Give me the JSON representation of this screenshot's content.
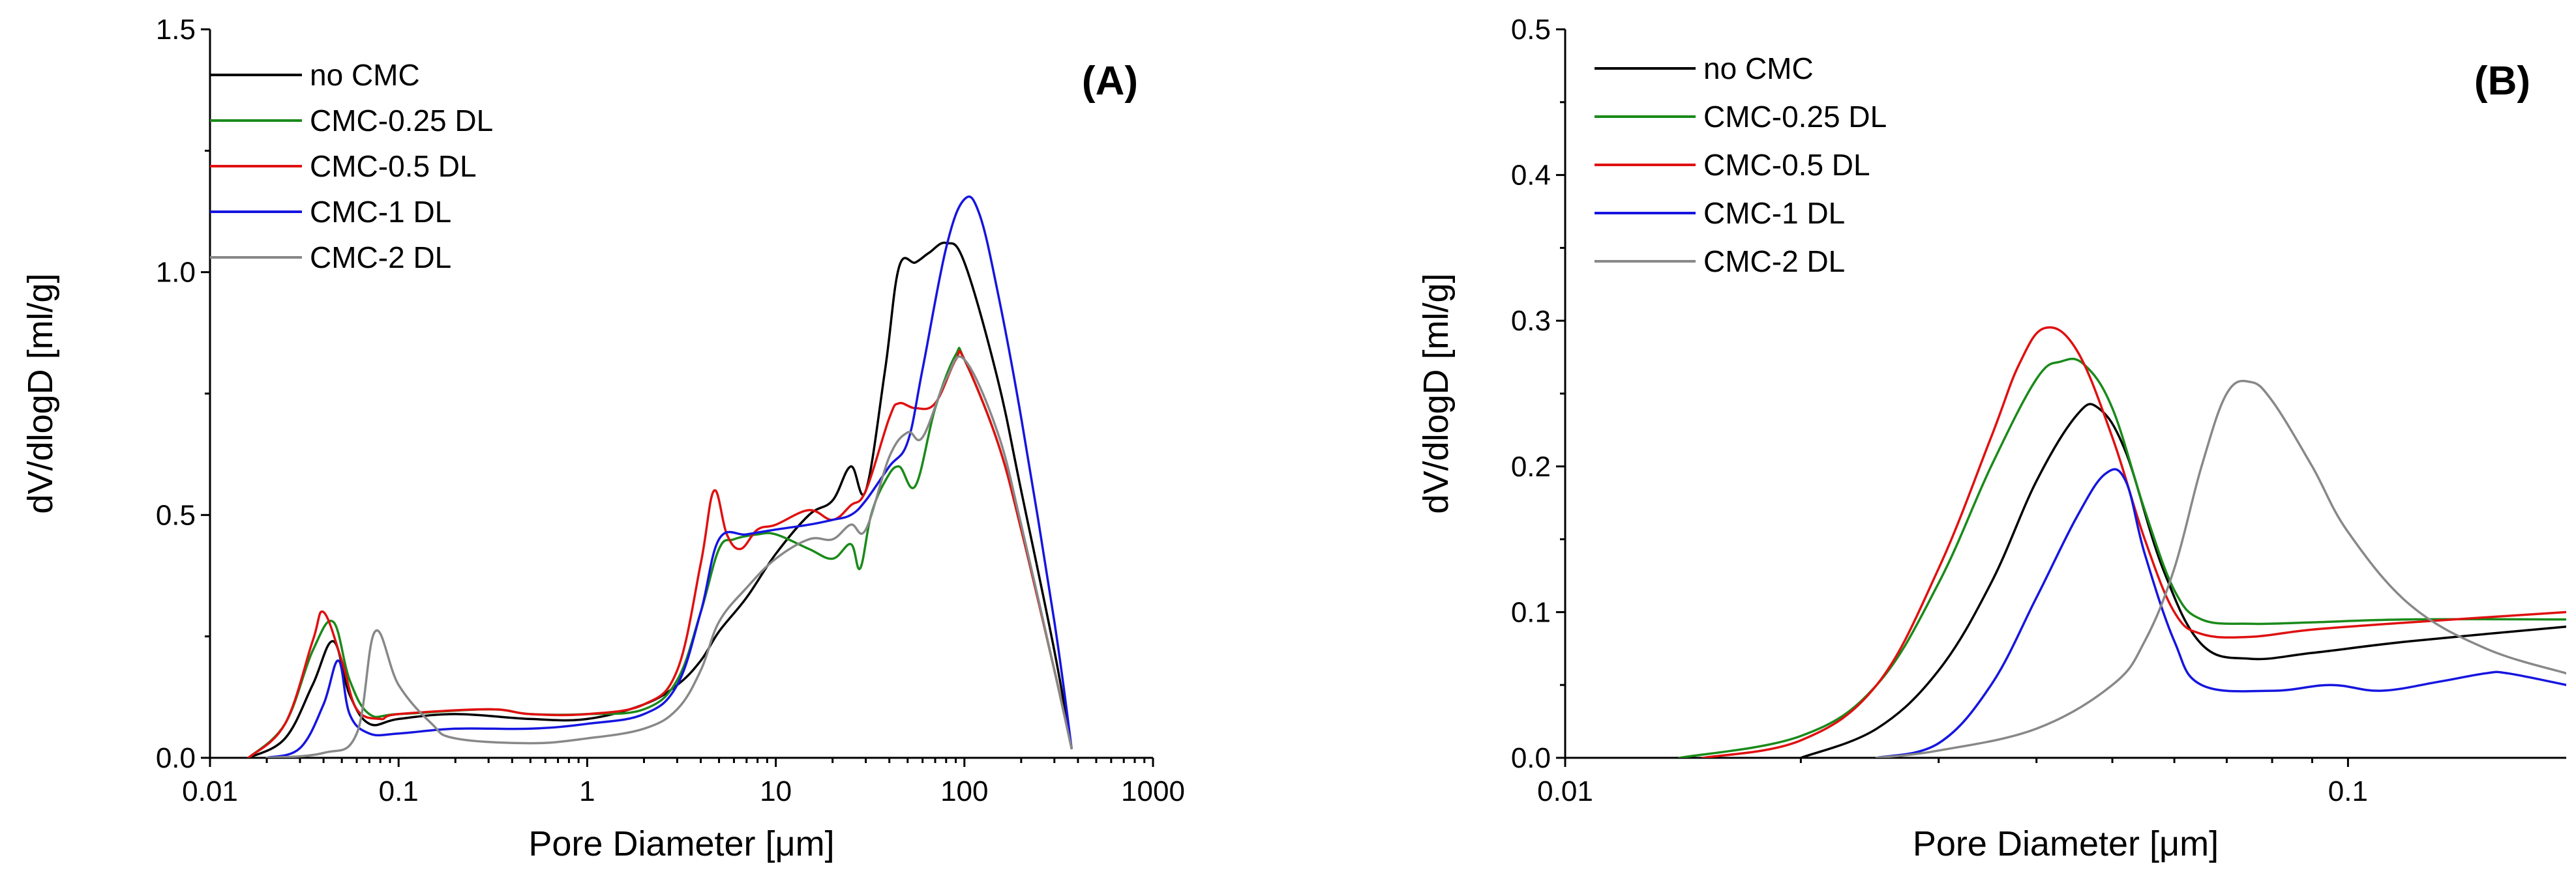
{
  "chart_data": [
    {
      "type": "line",
      "panel_label": "(A)",
      "xlabel": "Pore Diameter [μm]",
      "ylabel": "dV/dlogD [ml/g]",
      "xscale": "log",
      "xlim": [
        0.01,
        1000
      ],
      "ylim": [
        0.0,
        1.5
      ],
      "xticks": [
        0.01,
        0.1,
        1,
        10,
        100,
        1000
      ],
      "xtick_labels": [
        "0.01",
        "0.1",
        "1",
        "10",
        "100",
        "1000"
      ],
      "yticks": [
        0.0,
        0.5,
        1.0,
        1.5
      ],
      "ytick_labels": [
        "0.0",
        "0.5",
        "1.0",
        "1.5"
      ],
      "grid": false,
      "legend_position": "top-left",
      "series": [
        {
          "name": "no CMC",
          "color": "#000000",
          "x": [
            0.016,
            0.025,
            0.035,
            0.045,
            0.055,
            0.07,
            0.1,
            0.2,
            0.5,
            1,
            2,
            3,
            4,
            5,
            7,
            10,
            15,
            20,
            25,
            30,
            38,
            45,
            55,
            65,
            80,
            100,
            150,
            200,
            300,
            370
          ],
          "y": [
            0.0,
            0.04,
            0.15,
            0.24,
            0.13,
            0.07,
            0.08,
            0.09,
            0.08,
            0.08,
            0.11,
            0.15,
            0.2,
            0.26,
            0.33,
            0.42,
            0.5,
            0.53,
            0.6,
            0.55,
            0.8,
            1.01,
            1.02,
            1.04,
            1.06,
            1.02,
            0.78,
            0.55,
            0.22,
            0.02
          ]
        },
        {
          "name": "CMC-0.25 DL",
          "color": "#1a8a1a",
          "x": [
            0.016,
            0.025,
            0.035,
            0.045,
            0.055,
            0.07,
            0.1,
            0.3,
            0.5,
            1,
            2,
            3,
            4,
            5,
            6,
            8,
            10,
            15,
            20,
            25,
            28,
            32,
            38,
            45,
            55,
            70,
            90,
            100,
            150,
            200,
            300,
            370
          ],
          "y": [
            0.0,
            0.07,
            0.22,
            0.28,
            0.16,
            0.09,
            0.09,
            0.1,
            0.09,
            0.09,
            0.1,
            0.16,
            0.3,
            0.43,
            0.45,
            0.46,
            0.46,
            0.43,
            0.41,
            0.44,
            0.39,
            0.5,
            0.57,
            0.6,
            0.56,
            0.72,
            0.83,
            0.82,
            0.65,
            0.47,
            0.18,
            0.02
          ]
        },
        {
          "name": "CMC-0.5 DL",
          "color": "#e01010",
          "x": [
            0.016,
            0.025,
            0.035,
            0.04,
            0.05,
            0.06,
            0.08,
            0.1,
            0.3,
            0.5,
            1,
            2,
            3,
            4,
            4.7,
            5.5,
            6.5,
            8,
            10,
            15,
            20,
            25,
            30,
            40,
            45,
            55,
            70,
            90,
            100,
            150,
            200,
            300,
            370
          ],
          "y": [
            0.0,
            0.07,
            0.24,
            0.3,
            0.2,
            0.1,
            0.08,
            0.09,
            0.1,
            0.09,
            0.09,
            0.11,
            0.18,
            0.4,
            0.55,
            0.46,
            0.43,
            0.47,
            0.48,
            0.51,
            0.49,
            0.52,
            0.55,
            0.7,
            0.73,
            0.72,
            0.73,
            0.82,
            0.82,
            0.65,
            0.47,
            0.18,
            0.02
          ]
        },
        {
          "name": "CMC-1 DL",
          "color": "#1515e0",
          "x": [
            0.02,
            0.03,
            0.04,
            0.048,
            0.055,
            0.07,
            0.1,
            0.2,
            0.5,
            1,
            2,
            3,
            4,
            5,
            7,
            10,
            15,
            20,
            25,
            30,
            40,
            50,
            60,
            80,
            100,
            120,
            150,
            200,
            300,
            370
          ],
          "y": [
            0.0,
            0.02,
            0.11,
            0.2,
            0.09,
            0.05,
            0.05,
            0.06,
            0.06,
            0.07,
            0.09,
            0.15,
            0.3,
            0.45,
            0.46,
            0.47,
            0.48,
            0.49,
            0.5,
            0.53,
            0.6,
            0.65,
            0.8,
            1.05,
            1.15,
            1.12,
            0.96,
            0.7,
            0.28,
            0.02
          ]
        },
        {
          "name": "CMC-2 DL",
          "color": "#888888",
          "x": [
            0.02,
            0.04,
            0.06,
            0.075,
            0.1,
            0.15,
            0.2,
            0.5,
            1,
            2,
            3,
            4,
            5,
            7,
            10,
            15,
            20,
            25,
            30,
            40,
            50,
            60,
            80,
            100,
            150,
            200,
            300,
            370
          ],
          "y": [
            0.0,
            0.01,
            0.05,
            0.26,
            0.15,
            0.07,
            0.04,
            0.03,
            0.04,
            0.06,
            0.1,
            0.18,
            0.28,
            0.35,
            0.41,
            0.45,
            0.45,
            0.48,
            0.47,
            0.62,
            0.67,
            0.66,
            0.78,
            0.82,
            0.67,
            0.48,
            0.18,
            0.02
          ]
        }
      ]
    },
    {
      "type": "line",
      "panel_label": "(B)",
      "xlabel": "Pore Diameter [μm]",
      "ylabel": "dV/dlogD [ml/g]",
      "xscale": "log",
      "xlim": [
        0.01,
        0.19
      ],
      "ylim": [
        0.0,
        0.5
      ],
      "xticks": [
        0.01,
        0.1
      ],
      "xtick_labels": [
        "0.01",
        "0.1"
      ],
      "yticks": [
        0.0,
        0.1,
        0.2,
        0.3,
        0.4,
        0.5
      ],
      "ytick_labels": [
        "0.0",
        "0.1",
        "0.2",
        "0.3",
        "0.4",
        "0.5"
      ],
      "grid": false,
      "legend_position": "top-left",
      "series": [
        {
          "name": "no CMC",
          "color": "#000000",
          "x": [
            0.02,
            0.025,
            0.03,
            0.035,
            0.04,
            0.045,
            0.048,
            0.052,
            0.058,
            0.065,
            0.075,
            0.09,
            0.12,
            0.19
          ],
          "y": [
            0.0,
            0.02,
            0.06,
            0.12,
            0.19,
            0.235,
            0.24,
            0.21,
            0.13,
            0.078,
            0.068,
            0.072,
            0.08,
            0.09
          ]
        },
        {
          "name": "CMC-0.25 DL",
          "color": "#1a8a1a",
          "x": [
            0.014,
            0.02,
            0.025,
            0.03,
            0.035,
            0.04,
            0.043,
            0.046,
            0.05,
            0.055,
            0.06,
            0.065,
            0.075,
            0.09,
            0.12,
            0.19
          ],
          "y": [
            0.0,
            0.015,
            0.05,
            0.12,
            0.2,
            0.26,
            0.272,
            0.27,
            0.24,
            0.17,
            0.115,
            0.095,
            0.092,
            0.093,
            0.095,
            0.095
          ]
        },
        {
          "name": "CMC-0.5 DL",
          "color": "#e01010",
          "x": [
            0.015,
            0.02,
            0.025,
            0.03,
            0.035,
            0.038,
            0.041,
            0.045,
            0.05,
            0.055,
            0.06,
            0.065,
            0.075,
            0.09,
            0.12,
            0.19
          ],
          "y": [
            0.0,
            0.012,
            0.05,
            0.13,
            0.22,
            0.27,
            0.295,
            0.28,
            0.22,
            0.15,
            0.1,
            0.085,
            0.083,
            0.088,
            0.093,
            0.1
          ]
        },
        {
          "name": "CMC-1 DL",
          "color": "#1515e0",
          "x": [
            0.025,
            0.03,
            0.035,
            0.04,
            0.045,
            0.049,
            0.052,
            0.055,
            0.06,
            0.065,
            0.08,
            0.095,
            0.11,
            0.13,
            0.15,
            0.16,
            0.19
          ],
          "y": [
            0.0,
            0.01,
            0.05,
            0.11,
            0.165,
            0.195,
            0.19,
            0.14,
            0.08,
            0.05,
            0.046,
            0.05,
            0.046,
            0.052,
            0.058,
            0.058,
            0.05
          ]
        },
        {
          "name": "CMC-2 DL",
          "color": "#888888",
          "x": [
            0.025,
            0.03,
            0.04,
            0.05,
            0.055,
            0.06,
            0.065,
            0.07,
            0.075,
            0.08,
            0.09,
            0.1,
            0.12,
            0.15,
            0.19
          ],
          "y": [
            0.0,
            0.005,
            0.02,
            0.05,
            0.08,
            0.13,
            0.2,
            0.25,
            0.258,
            0.245,
            0.2,
            0.155,
            0.105,
            0.075,
            0.058
          ]
        }
      ]
    }
  ]
}
